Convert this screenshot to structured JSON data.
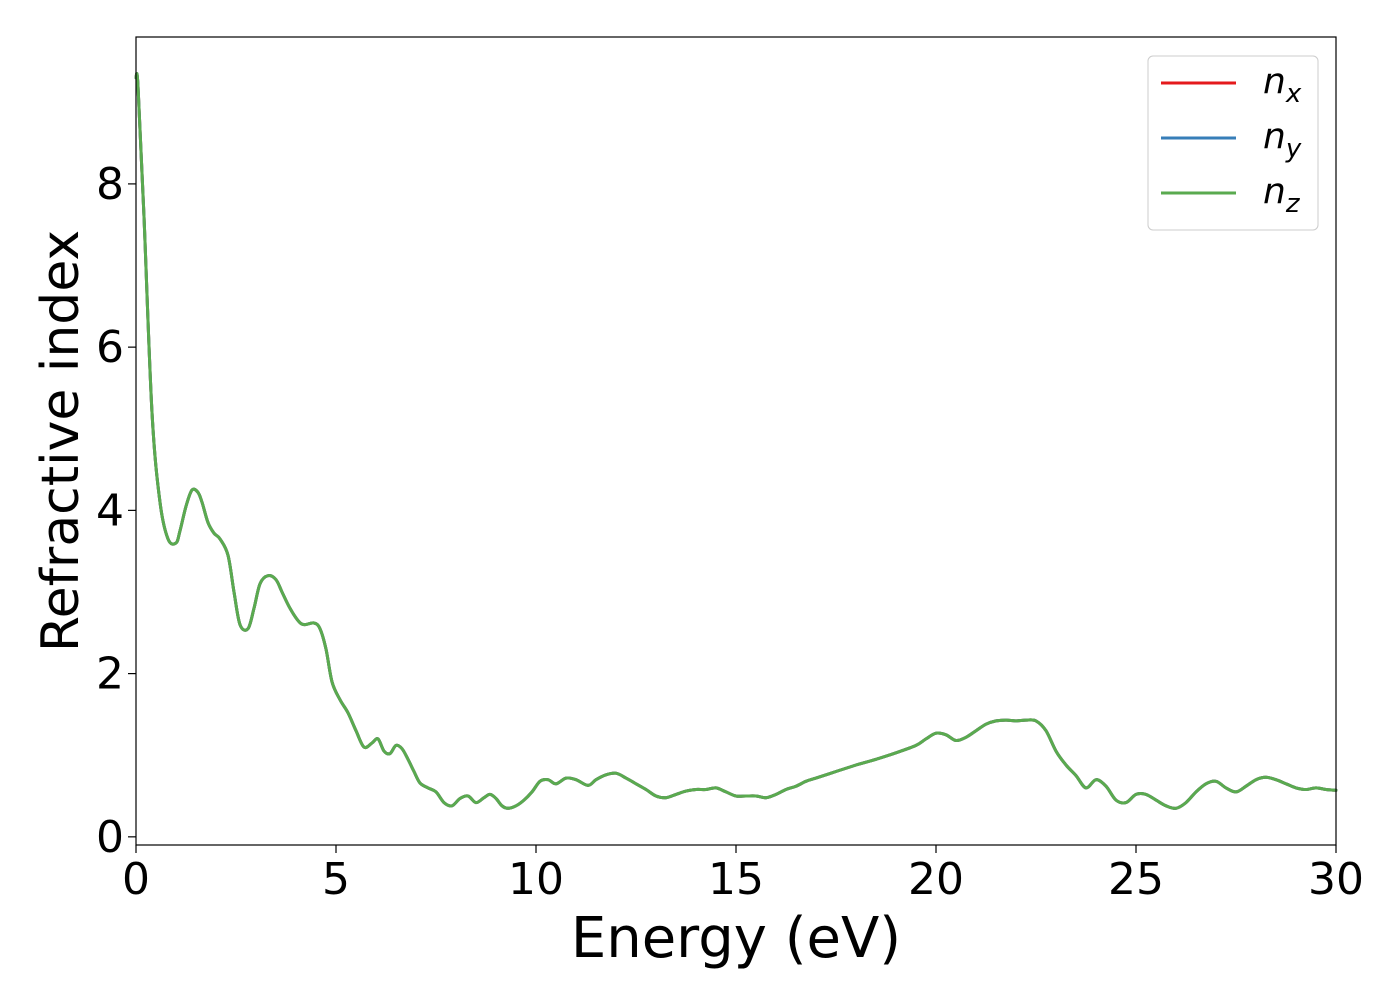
{
  "chart_data": {
    "type": "line",
    "title": "",
    "xlabel": "Energy (eV)",
    "ylabel": "Refractive index",
    "xlim": [
      0,
      30
    ],
    "ylim": [
      -0.1,
      9.8
    ],
    "xticks": [
      0,
      5,
      10,
      15,
      20,
      25,
      30
    ],
    "yticks": [
      0,
      2,
      4,
      6,
      8
    ],
    "grid": false,
    "legend_position": "top-right",
    "series": [
      {
        "name": "n_x",
        "legend_base": "n",
        "legend_sub": "x",
        "color": "#e41a1c"
      },
      {
        "name": "n_y",
        "legend_base": "n",
        "legend_sub": "y",
        "color": "#377eb8"
      },
      {
        "name": "n_z",
        "legend_base": "n",
        "legend_sub": "z",
        "color": "#5aaa4f"
      }
    ],
    "note_series_identical": true,
    "x": [
      0,
      0.05,
      0.2,
      0.4,
      0.6,
      0.8,
      1.0,
      1.1,
      1.25,
      1.4,
      1.55,
      1.65,
      1.8,
      1.95,
      2.1,
      2.3,
      2.45,
      2.6,
      2.8,
      2.95,
      3.1,
      3.3,
      3.5,
      3.65,
      3.85,
      4.05,
      4.2,
      4.45,
      4.6,
      4.75,
      4.9,
      5.1,
      5.3,
      5.5,
      5.7,
      5.9,
      6.05,
      6.2,
      6.35,
      6.5,
      6.65,
      6.8,
      6.95,
      7.1,
      7.3,
      7.5,
      7.7,
      7.9,
      8.1,
      8.3,
      8.5,
      8.7,
      8.85,
      9.0,
      9.15,
      9.3,
      9.5,
      9.7,
      9.9,
      10.1,
      10.3,
      10.5,
      10.75,
      11.0,
      11.3,
      11.5,
      11.75,
      12.0,
      12.25,
      12.5,
      12.75,
      13.0,
      13.25,
      13.5,
      13.75,
      14.0,
      14.25,
      14.5,
      14.75,
      15.0,
      15.25,
      15.5,
      15.75,
      16.0,
      16.25,
      16.5,
      16.75,
      17.0,
      17.5,
      18.0,
      18.5,
      19.0,
      19.5,
      19.75,
      20.0,
      20.25,
      20.5,
      20.75,
      21.0,
      21.25,
      21.5,
      21.75,
      22.0,
      22.25,
      22.5,
      22.75,
      23.0,
      23.25,
      23.5,
      23.75,
      24.0,
      24.25,
      24.5,
      24.75,
      25.0,
      25.25,
      25.5,
      25.75,
      26.0,
      26.25,
      26.5,
      26.75,
      27.0,
      27.25,
      27.5,
      27.75,
      28.0,
      28.25,
      28.5,
      28.75,
      29.0,
      29.25,
      29.5,
      29.75,
      30.0
    ],
    "y": [
      9.3,
      9.2,
      7.6,
      5.2,
      4.1,
      3.65,
      3.6,
      3.75,
      4.05,
      4.25,
      4.22,
      4.1,
      3.85,
      3.72,
      3.65,
      3.45,
      3.0,
      2.6,
      2.55,
      2.8,
      3.1,
      3.2,
      3.15,
      3.0,
      2.8,
      2.65,
      2.6,
      2.62,
      2.55,
      2.3,
      1.9,
      1.68,
      1.52,
      1.3,
      1.1,
      1.15,
      1.2,
      1.05,
      1.02,
      1.12,
      1.08,
      0.95,
      0.8,
      0.66,
      0.6,
      0.55,
      0.42,
      0.38,
      0.47,
      0.5,
      0.42,
      0.48,
      0.52,
      0.47,
      0.38,
      0.35,
      0.38,
      0.45,
      0.55,
      0.68,
      0.7,
      0.65,
      0.72,
      0.7,
      0.63,
      0.7,
      0.76,
      0.78,
      0.72,
      0.65,
      0.58,
      0.5,
      0.48,
      0.52,
      0.56,
      0.58,
      0.58,
      0.6,
      0.55,
      0.5,
      0.5,
      0.5,
      0.48,
      0.52,
      0.58,
      0.62,
      0.68,
      0.72,
      0.8,
      0.88,
      0.95,
      1.03,
      1.12,
      1.2,
      1.27,
      1.25,
      1.18,
      1.22,
      1.3,
      1.38,
      1.42,
      1.43,
      1.42,
      1.43,
      1.42,
      1.3,
      1.05,
      0.88,
      0.75,
      0.6,
      0.7,
      0.62,
      0.45,
      0.42,
      0.52,
      0.52,
      0.45,
      0.38,
      0.35,
      0.42,
      0.55,
      0.65,
      0.68,
      0.6,
      0.55,
      0.62,
      0.7,
      0.73,
      0.7,
      0.65,
      0.6,
      0.58,
      0.6,
      0.58,
      0.57
    ]
  }
}
